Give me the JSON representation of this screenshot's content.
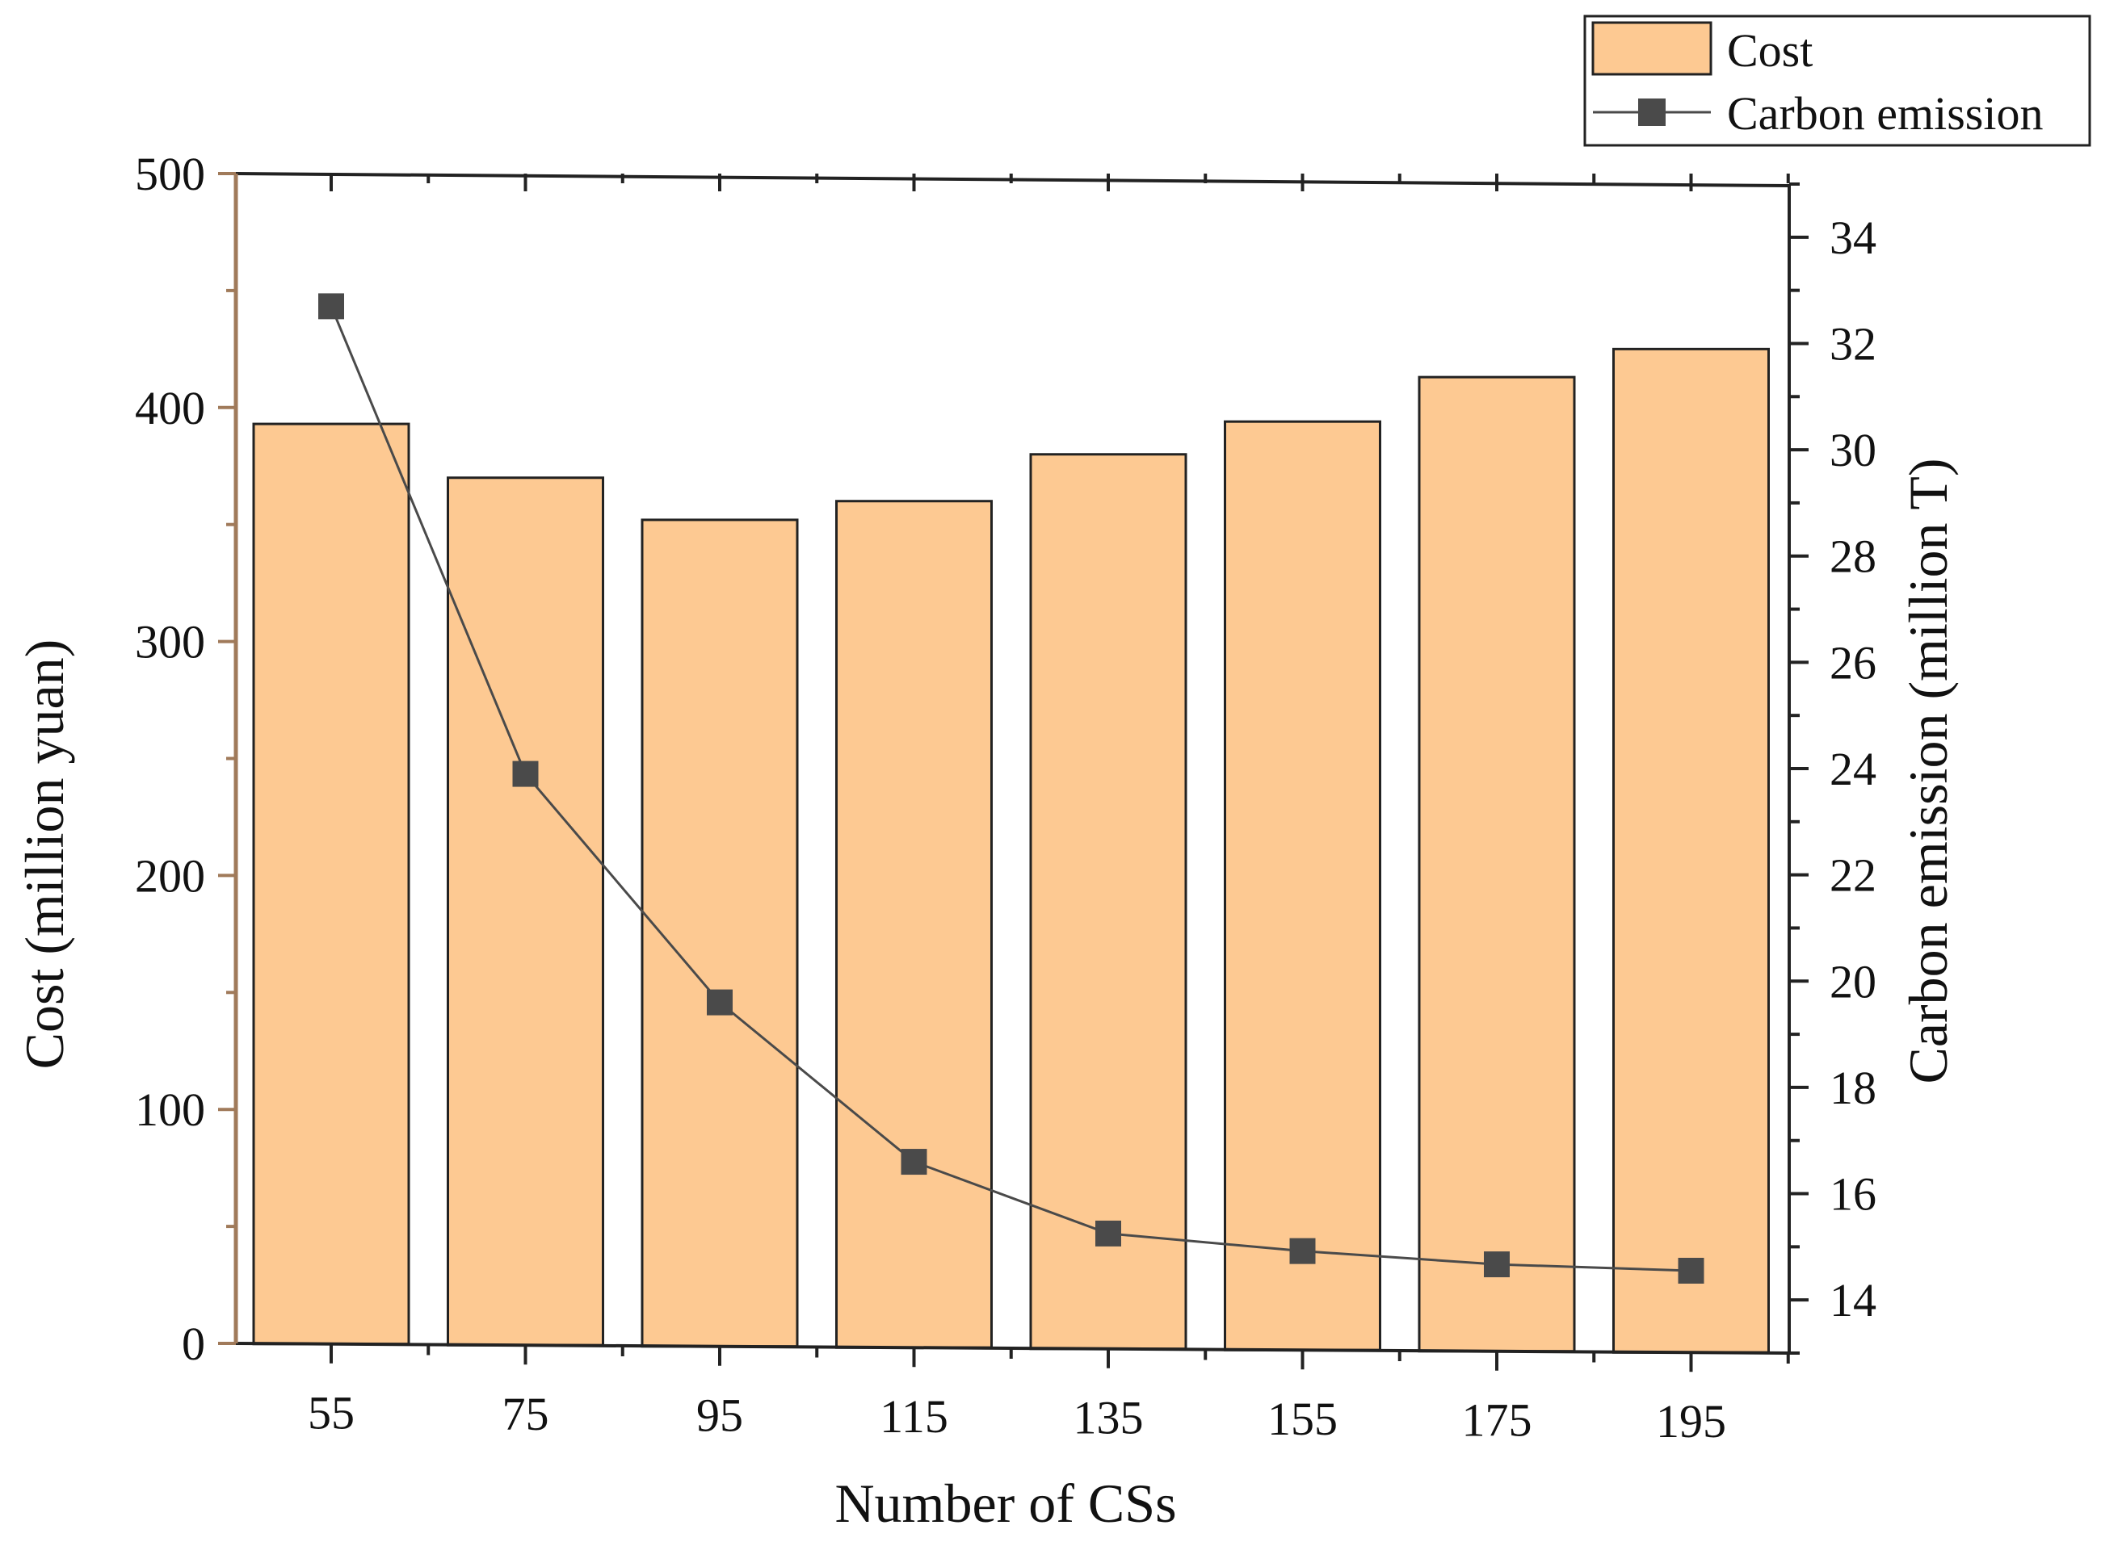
{
  "chart_data": {
    "type": "bar+line",
    "categories": [
      "55",
      "75",
      "95",
      "115",
      "135",
      "155",
      "175",
      "195"
    ],
    "series": [
      {
        "name": "Cost",
        "type": "bar",
        "axis": "left",
        "color": "#FDC992",
        "values": [
          393,
          370,
          352,
          360,
          380,
          394,
          413,
          425
        ]
      },
      {
        "name": "Carbon emission",
        "type": "line",
        "axis": "right",
        "color": "#4a4a4a",
        "marker": "square",
        "values": [
          32.7,
          23.9,
          19.6,
          16.6,
          15.25,
          14.92,
          14.67,
          14.55
        ]
      }
    ],
    "xlabel": "Number of CSs",
    "ylabel": "Cost (million yuan)",
    "y2label": "Carbon emission (million T)",
    "ylim": [
      0,
      500
    ],
    "y2lim": [
      13,
      35
    ],
    "yticks": [
      "0",
      "100",
      "200",
      "300",
      "400",
      "500"
    ],
    "y2ticks": [
      "14",
      "16",
      "18",
      "20",
      "22",
      "24",
      "26",
      "28",
      "30",
      "32",
      "34"
    ],
    "legend": {
      "position": "top-right",
      "entries": [
        "Cost",
        "Carbon emission"
      ]
    },
    "grid": false,
    "colors": {
      "left_axis": "#a07a5a",
      "axis": "#222222",
      "bar_stroke": "#222222"
    }
  }
}
